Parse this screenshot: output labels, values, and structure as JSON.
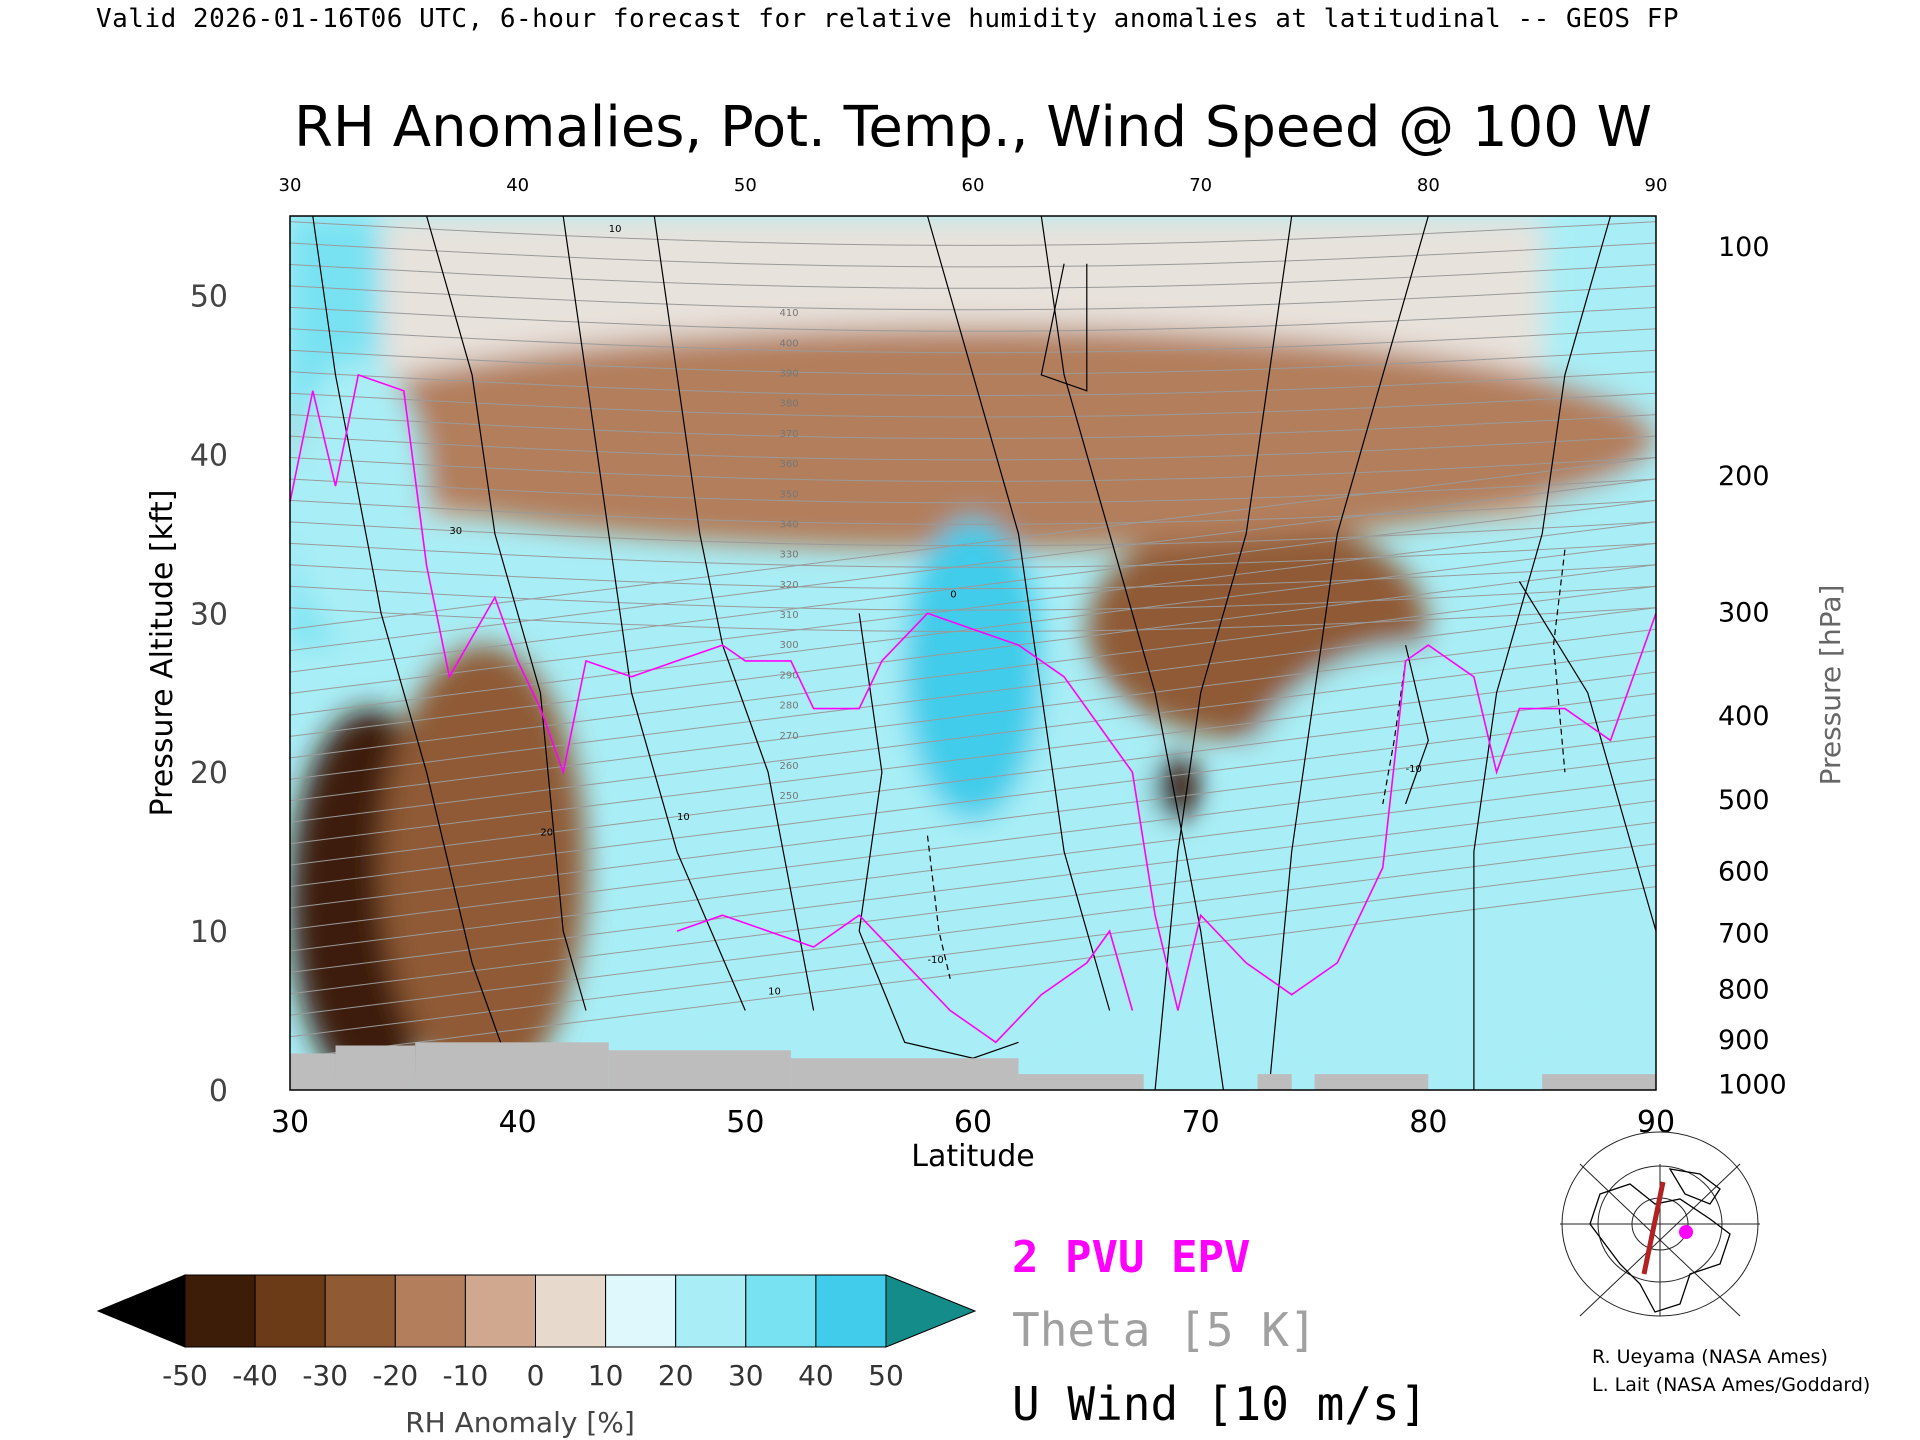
{
  "header": {
    "valid_line": "Valid 2026-01-16T06 UTC, 6-hour forecast for relative humidity anomalies at latitudinal -- GEOS FP"
  },
  "chart_data": {
    "type": "heatmap",
    "title": "RH Anomalies, Pot. Temp., Wind Speed @ 100 W",
    "xlabel": "Latitude",
    "ylabel": "Pressure Altitude [kft]",
    "ylabel_right": "Pressure [hPa]",
    "xlim": [
      30,
      90
    ],
    "ylim": [
      0,
      55
    ],
    "x_ticks": [
      30,
      40,
      50,
      60,
      70,
      80,
      90
    ],
    "y_ticks": [
      0,
      10,
      20,
      30,
      40,
      50
    ],
    "pressure_ticks": [
      {
        "label": "100",
        "kft": 53.1
      },
      {
        "label": "200",
        "kft": 38.7
      },
      {
        "label": "300",
        "kft": 30.1
      },
      {
        "label": "400",
        "kft": 23.6
      },
      {
        "label": "500",
        "kft": 18.3
      },
      {
        "label": "600",
        "kft": 13.8
      },
      {
        "label": "700",
        "kft": 9.9
      },
      {
        "label": "800",
        "kft": 6.4
      },
      {
        "label": "900",
        "kft": 3.2
      },
      {
        "label": "1000",
        "kft": 0.4
      }
    ],
    "colorbar": {
      "label": "RH Anomaly [%]",
      "ticks": [
        "-50",
        "-40",
        "-30",
        "-20",
        "-10",
        "0",
        "10",
        "20",
        "30",
        "40",
        "50"
      ],
      "colors": [
        "#000000",
        "#3e1d08",
        "#6b3a17",
        "#8f5a34",
        "#b27e5c",
        "#d0a890",
        "#e8d9cd",
        "#dff8fb",
        "#a9eef6",
        "#78e2f2",
        "#40ccea",
        "#1aa9d2",
        "#0b8ba9",
        "#138c8a"
      ]
    },
    "dry_anomaly_regions": [
      {
        "lat": [
          30,
          37
        ],
        "kft": [
          0,
          24
        ],
        "anomaly": -50
      },
      {
        "lat": [
          34,
          43
        ],
        "kft": [
          0,
          28
        ],
        "anomaly": -30
      },
      {
        "lat": [
          65,
          80
        ],
        "kft": [
          22,
          36
        ],
        "anomaly": -30
      },
      {
        "lat": [
          68,
          70
        ],
        "kft": [
          17,
          21
        ],
        "anomaly": -50
      },
      {
        "lat": [
          30,
          90
        ],
        "kft": [
          34,
          48
        ],
        "anomaly": -15
      }
    ],
    "moist_anomaly_regions": [
      {
        "lat": [
          45,
          68
        ],
        "kft": [
          2,
          30
        ],
        "anomaly": 25
      },
      {
        "lat": [
          57,
          63
        ],
        "kft": [
          17,
          36
        ],
        "anomaly": 45
      },
      {
        "lat": [
          71,
          88
        ],
        "kft": [
          2,
          28
        ],
        "anomaly": 20
      },
      {
        "lat": [
          30,
          36
        ],
        "kft": [
          28,
          46
        ],
        "anomaly": 20
      }
    ],
    "theta_labels": [
      "410",
      "400",
      "390",
      "380",
      "370",
      "360",
      "350",
      "340",
      "330",
      "320",
      "310",
      "300",
      "290",
      "280",
      "270",
      "260",
      "250"
    ],
    "u_wind_labels": [
      "10",
      "10",
      "0",
      "10",
      "20",
      "30",
      "-10",
      "-10"
    ],
    "legend": {
      "epv": {
        "label": "2 PVU EPV",
        "color": "#ff00ff"
      },
      "theta": {
        "label": "Theta [5 K]",
        "color": "#a0a0a0"
      },
      "uwind": {
        "label": "U Wind [10 m/s]",
        "color": "#000000"
      }
    }
  },
  "inset_map": {
    "description_marker_color": "#ff00ff",
    "section_line_color": "#b22222"
  },
  "credits": {
    "line1": "R. Ueyama (NASA Ames)",
    "line2": "L. Lait (NASA Ames/Goddard)"
  }
}
